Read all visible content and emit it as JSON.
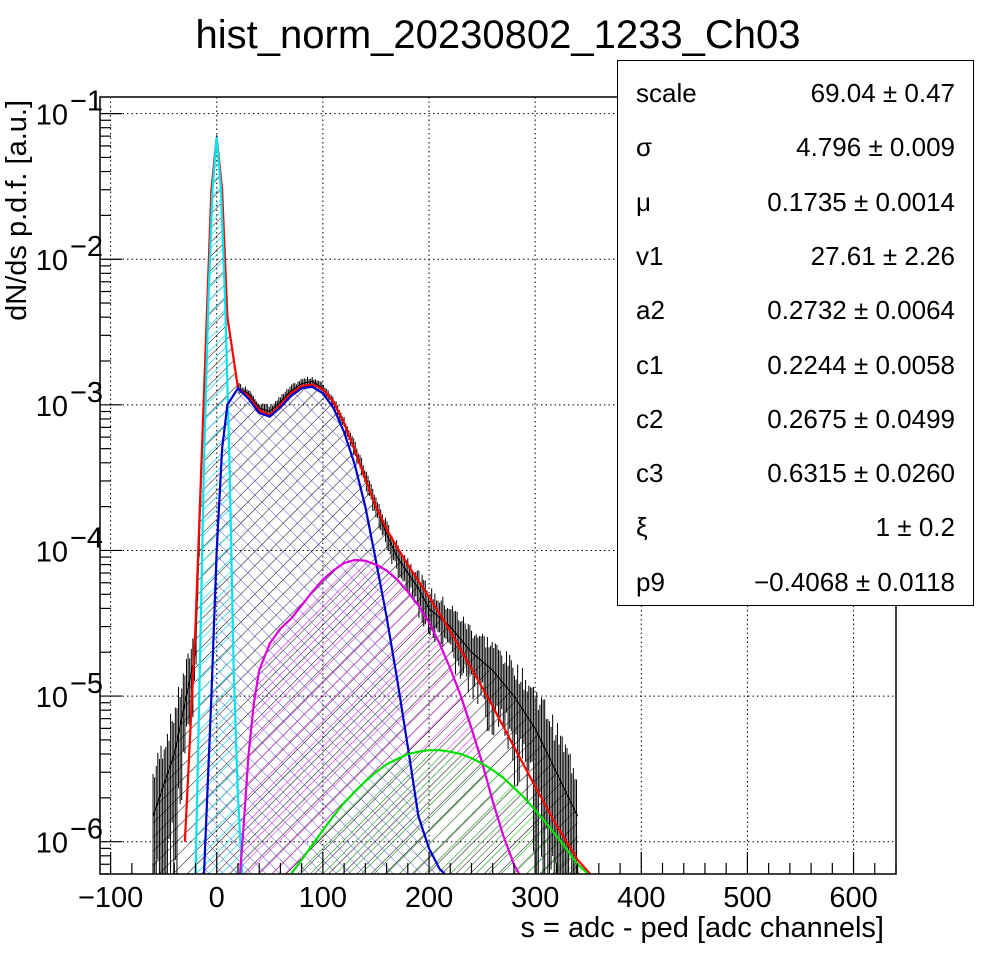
{
  "chart_data": {
    "type": "line",
    "title": "hist_norm_20230802_1233_Ch03",
    "xlabel": "s = adc - ped [adc channels]",
    "ylabel": "dN/ds p.d.f. [a.u.]",
    "xlim": [
      -110,
      640
    ],
    "ylim": [
      6e-07,
      0.13
    ],
    "yscale": "log",
    "grid": true,
    "x_ticks": [
      -100,
      0,
      100,
      200,
      300,
      400,
      500,
      600
    ],
    "x_tick_labels": [
      "−100",
      "0",
      "100",
      "200",
      "300",
      "400",
      "500",
      "600"
    ],
    "y_ticks": [
      {
        "value": 1e-06,
        "base": "10",
        "exp": "−6"
      },
      {
        "value": 1e-05,
        "base": "10",
        "exp": "−5"
      },
      {
        "value": 0.0001,
        "base": "10",
        "exp": "−4"
      },
      {
        "value": 0.001,
        "base": "10",
        "exp": "−3"
      },
      {
        "value": 0.01,
        "base": "10",
        "exp": "−2"
      },
      {
        "value": 0.1,
        "base": "10",
        "exp": "−1"
      }
    ],
    "series": [
      {
        "color": "#1a1a1a",
        "style": "histogram",
        "x": [
          -60,
          -40,
          -20,
          -10,
          -5,
          0,
          5,
          10,
          20,
          30,
          40,
          50,
          60,
          70,
          80,
          90,
          100,
          110,
          120,
          130,
          140,
          150,
          160,
          170,
          180,
          190,
          200,
          220,
          240,
          260,
          280,
          300,
          320,
          340
        ],
        "values": [
          1.5e-06,
          4e-06,
          2e-05,
          0.003,
          0.03,
          0.07,
          0.03,
          0.004,
          0.0013,
          0.0012,
          0.00095,
          0.0009,
          0.00105,
          0.00125,
          0.0014,
          0.00145,
          0.0013,
          0.00105,
          0.00075,
          0.0005,
          0.00032,
          0.0002,
          0.00013,
          9e-05,
          7e-05,
          5.5e-05,
          4e-05,
          3e-05,
          2e-05,
          1.5e-05,
          1e-05,
          6e-06,
          3e-06,
          1.5e-06
        ]
      },
      {
        "color": "#ff0000",
        "style": "line",
        "x": [
          -30,
          -20,
          -10,
          -5,
          0,
          5,
          10,
          20,
          30,
          40,
          50,
          60,
          70,
          80,
          90,
          100,
          110,
          120,
          130,
          140,
          150,
          160,
          170,
          180,
          190,
          200,
          220,
          240,
          260,
          280,
          300,
          320,
          340,
          352
        ],
        "values": [
          1e-06,
          3e-05,
          0.003,
          0.03,
          0.069,
          0.03,
          0.004,
          0.0013,
          0.00115,
          0.00092,
          0.00085,
          0.001,
          0.0012,
          0.00135,
          0.00138,
          0.00128,
          0.00105,
          0.00075,
          0.00049,
          0.00031,
          0.0002,
          0.00014,
          0.000105,
          8e-05,
          6.2e-05,
          4.8e-05,
          2.8e-05,
          1.55e-05,
          8.5e-06,
          4.5e-06,
          2.4e-06,
          1.3e-06,
          7.5e-07,
          6e-07
        ]
      },
      {
        "color": "#00e5ee",
        "style": "filled",
        "x": [
          -20,
          -16,
          -12,
          -8,
          -4,
          0,
          4,
          8,
          12,
          16,
          20,
          24
        ],
        "values": [
          6e-07,
          1.5e-05,
          0.0004,
          0.005,
          0.03,
          0.069,
          0.03,
          0.005,
          0.0004,
          1.5e-05,
          2e-06,
          6e-07
        ]
      },
      {
        "color": "#0000cc",
        "style": "filled",
        "x": [
          -12,
          -5,
          0,
          5,
          10,
          20,
          30,
          40,
          50,
          60,
          70,
          80,
          90,
          100,
          110,
          120,
          130,
          140,
          150,
          160,
          170,
          180,
          190,
          200,
          210,
          215
        ],
        "values": [
          6e-07,
          1e-05,
          0.0001,
          0.0005,
          0.001,
          0.0013,
          0.0011,
          0.00088,
          0.00083,
          0.00096,
          0.00115,
          0.0013,
          0.00133,
          0.0012,
          0.00095,
          0.00065,
          0.00039,
          0.0002,
          8.5e-05,
          3.5e-05,
          1.3e-05,
          4.5e-06,
          1.5e-06,
          9e-07,
          6.5e-07,
          6e-07
        ]
      },
      {
        "color": "#dd00dd",
        "style": "filled",
        "x": [
          22,
          25,
          30,
          35,
          40,
          50,
          60,
          70,
          80,
          90,
          100,
          110,
          120,
          130,
          140,
          150,
          160,
          170,
          180,
          190,
          200,
          210,
          220,
          230,
          240,
          250,
          260,
          270,
          280,
          285
        ],
        "values": [
          6e-07,
          1.2e-06,
          4e-06,
          9e-06,
          1.5e-05,
          2.3e-05,
          2.9e-05,
          3.4e-05,
          4.2e-05,
          5.2e-05,
          6.3e-05,
          7.3e-05,
          8.2e-05,
          8.6e-05,
          8.5e-05,
          8e-05,
          7.3e-05,
          6.3e-05,
          5.2e-05,
          4.2e-05,
          3.2e-05,
          2.3e-05,
          1.55e-05,
          1e-05,
          6e-06,
          3.5e-06,
          1.9e-06,
          1.1e-06,
          7e-07,
          6e-07
        ]
      },
      {
        "color": "#00e000",
        "style": "filled",
        "x": [
          70,
          80,
          90,
          100,
          110,
          120,
          130,
          140,
          150,
          160,
          170,
          180,
          190,
          200,
          210,
          220,
          230,
          240,
          250,
          260,
          270,
          280,
          290,
          300,
          310,
          320,
          330,
          340,
          350
        ],
        "values": [
          6e-07,
          7.5e-07,
          9.5e-07,
          1.2e-06,
          1.5e-06,
          1.85e-06,
          2.2e-06,
          2.6e-06,
          3e-06,
          3.4e-06,
          3.7e-06,
          4e-06,
          4.15e-06,
          4.25e-06,
          4.25e-06,
          4.15e-06,
          4e-06,
          3.75e-06,
          3.45e-06,
          3.1e-06,
          2.75e-06,
          2.35e-06,
          2e-06,
          1.65e-06,
          1.35e-06,
          1.1e-06,
          8.8e-07,
          7e-07,
          6e-07
        ]
      }
    ]
  },
  "stats": [
    {
      "name": "scale",
      "value": "69.04 ± 0.47"
    },
    {
      "name": "σ",
      "value": "4.796 ± 0.009"
    },
    {
      "name": "μ",
      "value": "0.1735 ± 0.0014"
    },
    {
      "name": "v1",
      "value": "27.61 ± 2.26"
    },
    {
      "name": "a2",
      "value": "0.2732 ± 0.0064"
    },
    {
      "name": "c1",
      "value": "0.2244 ± 0.0058"
    },
    {
      "name": "c2",
      "value": "0.2675 ± 0.0499"
    },
    {
      "name": "c3",
      "value": "0.6315 ± 0.0260"
    },
    {
      "name": "ξ",
      "value": "1 ± 0.2"
    },
    {
      "name": "p9",
      "value": "−0.4068 ± 0.0118"
    }
  ]
}
